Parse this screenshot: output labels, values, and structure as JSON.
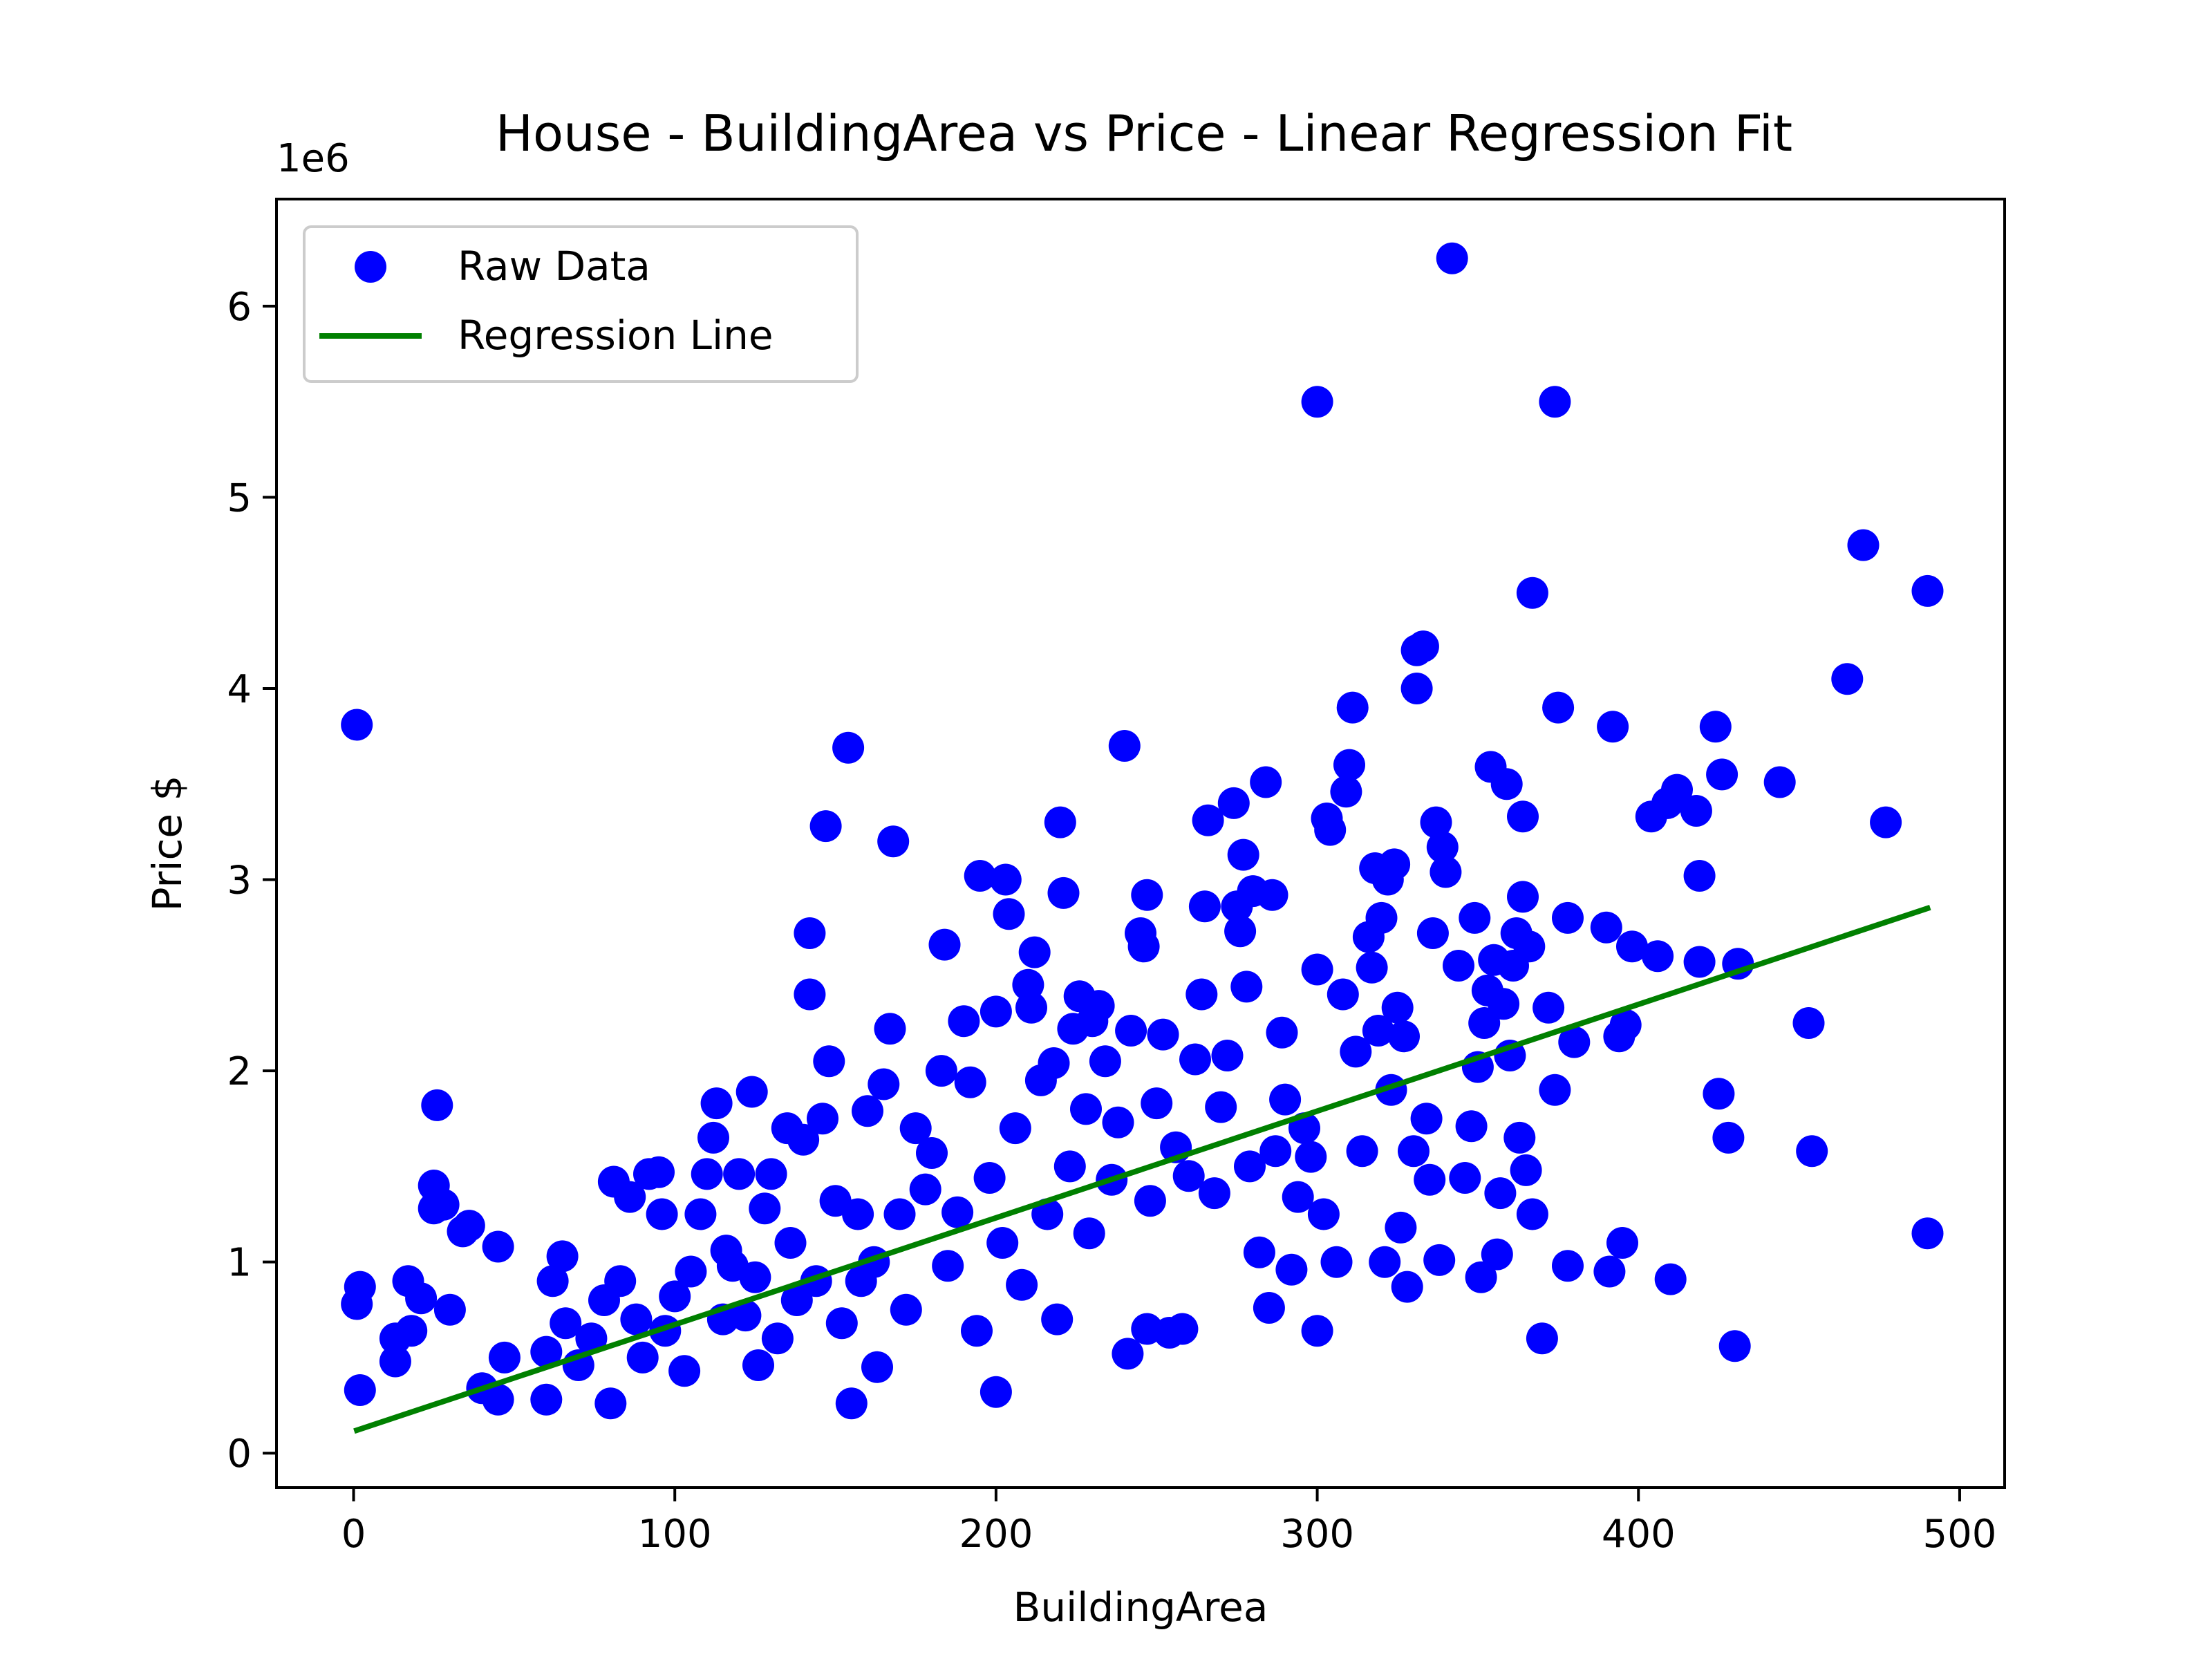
{
  "chart_data": {
    "type": "scatter",
    "title": "House - BuildingArea vs Price - Linear Regression Fit",
    "xlabel": "BuildingArea",
    "ylabel": "Price $",
    "y_offset_label": "1e6",
    "xlim": [
      -24,
      514
    ],
    "ylim": [
      -180000,
      6560000
    ],
    "xticks": [
      0,
      100,
      200,
      300,
      400,
      500
    ],
    "xtick_labels": [
      "0",
      "100",
      "200",
      "300",
      "400",
      "500"
    ],
    "yticks": [
      0,
      1000000,
      2000000,
      3000000,
      4000000,
      5000000,
      6000000
    ],
    "ytick_labels": [
      "0",
      "1",
      "2",
      "3",
      "4",
      "5",
      "6"
    ],
    "grid": false,
    "legend_position": "upper-left",
    "colors": {
      "raw": "#0000ff",
      "regression": "#008000"
    },
    "series": [
      {
        "name": "Raw Data",
        "kind": "scatter",
        "points": [
          [
            1,
            3810000
          ],
          [
            2,
            870000
          ],
          [
            1,
            780000
          ],
          [
            2,
            330000
          ],
          [
            13,
            600000
          ],
          [
            13,
            480000
          ],
          [
            17,
            900000
          ],
          [
            18,
            640000
          ],
          [
            21,
            810000
          ],
          [
            26,
            1820000
          ],
          [
            25,
            1400000
          ],
          [
            25,
            1280000
          ],
          [
            28,
            1300000
          ],
          [
            30,
            750000
          ],
          [
            34,
            1160000
          ],
          [
            36,
            1190000
          ],
          [
            40,
            340000
          ],
          [
            45,
            280000
          ],
          [
            45,
            1080000
          ],
          [
            47,
            500000
          ],
          [
            60,
            280000
          ],
          [
            60,
            530000
          ],
          [
            62,
            900000
          ],
          [
            65,
            1030000
          ],
          [
            66,
            680000
          ],
          [
            70,
            460000
          ],
          [
            74,
            600000
          ],
          [
            78,
            800000
          ],
          [
            80,
            260000
          ],
          [
            81,
            1420000
          ],
          [
            83,
            900000
          ],
          [
            86,
            1340000
          ],
          [
            88,
            700000
          ],
          [
            90,
            500000
          ],
          [
            92,
            1460000
          ],
          [
            95,
            1470000
          ],
          [
            96,
            1250000
          ],
          [
            97,
            640000
          ],
          [
            100,
            820000
          ],
          [
            103,
            430000
          ],
          [
            105,
            950000
          ],
          [
            108,
            1250000
          ],
          [
            110,
            1460000
          ],
          [
            112,
            1650000
          ],
          [
            113,
            1830000
          ],
          [
            115,
            700000
          ],
          [
            116,
            1060000
          ],
          [
            118,
            980000
          ],
          [
            120,
            1460000
          ],
          [
            122,
            720000
          ],
          [
            124,
            1890000
          ],
          [
            125,
            920000
          ],
          [
            126,
            460000
          ],
          [
            128,
            1280000
          ],
          [
            130,
            1460000
          ],
          [
            132,
            600000
          ],
          [
            135,
            1700000
          ],
          [
            136,
            1100000
          ],
          [
            138,
            800000
          ],
          [
            140,
            1640000
          ],
          [
            142,
            2720000
          ],
          [
            142,
            2400000
          ],
          [
            144,
            900000
          ],
          [
            146,
            1750000
          ],
          [
            147,
            3280000
          ],
          [
            148,
            2050000
          ],
          [
            150,
            1320000
          ],
          [
            152,
            680000
          ],
          [
            154,
            3690000
          ],
          [
            155,
            260000
          ],
          [
            157,
            1250000
          ],
          [
            158,
            900000
          ],
          [
            160,
            1790000
          ],
          [
            162,
            1000000
          ],
          [
            163,
            450000
          ],
          [
            165,
            1930000
          ],
          [
            167,
            2220000
          ],
          [
            168,
            3200000
          ],
          [
            170,
            1250000
          ],
          [
            172,
            750000
          ],
          [
            175,
            1700000
          ],
          [
            178,
            1380000
          ],
          [
            180,
            1570000
          ],
          [
            183,
            2000000
          ],
          [
            184,
            2660000
          ],
          [
            185,
            980000
          ],
          [
            188,
            1260000
          ],
          [
            190,
            2260000
          ],
          [
            192,
            1940000
          ],
          [
            194,
            640000
          ],
          [
            195,
            3020000
          ],
          [
            198,
            1440000
          ],
          [
            200,
            2310000
          ],
          [
            200,
            320000
          ],
          [
            202,
            1100000
          ],
          [
            203,
            3000000
          ],
          [
            204,
            2820000
          ],
          [
            206,
            1700000
          ],
          [
            208,
            880000
          ],
          [
            210,
            2450000
          ],
          [
            211,
            2330000
          ],
          [
            212,
            2620000
          ],
          [
            214,
            1950000
          ],
          [
            216,
            1250000
          ],
          [
            218,
            2040000
          ],
          [
            219,
            700000
          ],
          [
            220,
            3300000
          ],
          [
            221,
            2930000
          ],
          [
            223,
            1500000
          ],
          [
            224,
            2220000
          ],
          [
            226,
            2390000
          ],
          [
            228,
            1800000
          ],
          [
            229,
            1150000
          ],
          [
            230,
            2260000
          ],
          [
            232,
            2340000
          ],
          [
            234,
            2050000
          ],
          [
            236,
            1430000
          ],
          [
            238,
            1730000
          ],
          [
            240,
            3700000
          ],
          [
            241,
            520000
          ],
          [
            242,
            2210000
          ],
          [
            245,
            2720000
          ],
          [
            246,
            2650000
          ],
          [
            247,
            2920000
          ],
          [
            248,
            1320000
          ],
          [
            250,
            1830000
          ],
          [
            252,
            2190000
          ],
          [
            254,
            630000
          ],
          [
            256,
            1600000
          ],
          [
            258,
            650000
          ],
          [
            260,
            1450000
          ],
          [
            262,
            2060000
          ],
          [
            264,
            2400000
          ],
          [
            265,
            2860000
          ],
          [
            266,
            3310000
          ],
          [
            268,
            1360000
          ],
          [
            270,
            1810000
          ],
          [
            272,
            2080000
          ],
          [
            274,
            3400000
          ],
          [
            275,
            2860000
          ],
          [
            276,
            2730000
          ],
          [
            277,
            3130000
          ],
          [
            278,
            2440000
          ],
          [
            279,
            1500000
          ],
          [
            280,
            2940000
          ],
          [
            282,
            1050000
          ],
          [
            284,
            3510000
          ],
          [
            285,
            760000
          ],
          [
            286,
            2920000
          ],
          [
            287,
            1580000
          ],
          [
            289,
            2200000
          ],
          [
            290,
            1850000
          ],
          [
            292,
            960000
          ],
          [
            294,
            1340000
          ],
          [
            296,
            1700000
          ],
          [
            298,
            1550000
          ],
          [
            300,
            2530000
          ],
          [
            300,
            640000
          ],
          [
            302,
            1250000
          ],
          [
            303,
            3320000
          ],
          [
            304,
            3260000
          ],
          [
            306,
            1000000
          ],
          [
            308,
            2400000
          ],
          [
            309,
            3460000
          ],
          [
            310,
            3600000
          ],
          [
            311,
            3900000
          ],
          [
            312,
            2100000
          ],
          [
            314,
            1580000
          ],
          [
            316,
            2700000
          ],
          [
            317,
            2540000
          ],
          [
            318,
            3060000
          ],
          [
            319,
            2210000
          ],
          [
            320,
            2800000
          ],
          [
            321,
            1000000
          ],
          [
            322,
            3000000
          ],
          [
            323,
            1900000
          ],
          [
            324,
            3080000
          ],
          [
            325,
            2330000
          ],
          [
            326,
            1180000
          ],
          [
            327,
            2180000
          ],
          [
            328,
            870000
          ],
          [
            330,
            1580000
          ],
          [
            331,
            4000000
          ],
          [
            331,
            4200000
          ],
          [
            333,
            4220000
          ],
          [
            334,
            1750000
          ],
          [
            335,
            1430000
          ],
          [
            336,
            2720000
          ],
          [
            337,
            3300000
          ],
          [
            338,
            1010000
          ],
          [
            339,
            3170000
          ],
          [
            340,
            3040000
          ],
          [
            342,
            6250000
          ],
          [
            344,
            2550000
          ],
          [
            346,
            1440000
          ],
          [
            348,
            1710000
          ],
          [
            349,
            2800000
          ],
          [
            350,
            2020000
          ],
          [
            351,
            920000
          ],
          [
            352,
            2250000
          ],
          [
            353,
            2420000
          ],
          [
            354,
            3590000
          ],
          [
            355,
            2580000
          ],
          [
            356,
            1040000
          ],
          [
            357,
            1360000
          ],
          [
            358,
            2350000
          ],
          [
            359,
            3500000
          ],
          [
            360,
            2080000
          ],
          [
            361,
            2550000
          ],
          [
            362,
            2720000
          ],
          [
            363,
            1650000
          ],
          [
            364,
            2910000
          ],
          [
            364,
            3330000
          ],
          [
            365,
            1480000
          ],
          [
            366,
            2650000
          ],
          [
            367,
            1250000
          ],
          [
            367,
            4500000
          ],
          [
            370,
            600000
          ],
          [
            372,
            2330000
          ],
          [
            374,
            1900000
          ],
          [
            374,
            5500000
          ],
          [
            375,
            3900000
          ],
          [
            378,
            980000
          ],
          [
            378,
            2800000
          ],
          [
            380,
            2150000
          ],
          [
            390,
            2750000
          ],
          [
            391,
            950000
          ],
          [
            392,
            3800000
          ],
          [
            394,
            2180000
          ],
          [
            395,
            1100000
          ],
          [
            396,
            2240000
          ],
          [
            398,
            2650000
          ],
          [
            404,
            3330000
          ],
          [
            406,
            2600000
          ],
          [
            409,
            3400000
          ],
          [
            410,
            910000
          ],
          [
            412,
            3470000
          ],
          [
            418,
            3360000
          ],
          [
            419,
            2570000
          ],
          [
            419,
            3020000
          ],
          [
            424,
            3800000
          ],
          [
            425,
            1880000
          ],
          [
            426,
            3550000
          ],
          [
            428,
            1650000
          ],
          [
            430,
            560000
          ],
          [
            431,
            2560000
          ],
          [
            444,
            3510000
          ],
          [
            453,
            2250000
          ],
          [
            454,
            1580000
          ],
          [
            465,
            4050000
          ],
          [
            470,
            4750000
          ],
          [
            477,
            3300000
          ],
          [
            490,
            4510000
          ],
          [
            490,
            1150000
          ],
          [
            300,
            5500000
          ],
          [
            247,
            650000
          ]
        ]
      },
      {
        "name": "Regression Line",
        "kind": "line",
        "points": [
          [
            1,
            120000
          ],
          [
            490,
            2850000
          ]
        ]
      }
    ]
  }
}
